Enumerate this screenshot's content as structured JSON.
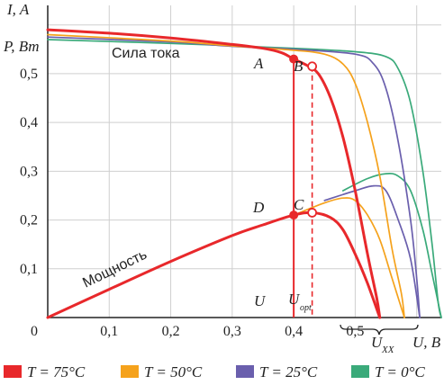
{
  "chart_data": {
    "type": "line",
    "xlabel": "U, B",
    "ylabel_current": "I, A",
    "ylabel_power": "P, Вт",
    "xlim": [
      0,
      0.64
    ],
    "ylim": [
      0,
      0.64
    ],
    "x_ticks": [
      "0",
      "0,1",
      "0,2",
      "0,3",
      "0,4",
      "0,5"
    ],
    "y_ticks": [
      "0,1",
      "0,2",
      "0,3",
      "0,4",
      "0,5"
    ],
    "annotations": {
      "current_label": "Сила тока",
      "power_label": "Мощность",
      "u_label": "U",
      "u_opt_label": "U",
      "u_opt_sub": "opt",
      "u_xx_label": "U",
      "u_xx_sub": "XX",
      "points": [
        {
          "label": "A",
          "x": 0.4,
          "y": 0.53
        },
        {
          "label": "B",
          "x": 0.43,
          "y": 0.515
        },
        {
          "label": "C",
          "x": 0.43,
          "y": 0.215
        },
        {
          "label": "D",
          "x": 0.4,
          "y": 0.21
        }
      ]
    },
    "series": [
      {
        "name": "T = 75°C",
        "color": "#e8282b",
        "current": [
          [
            0,
            0.59
          ],
          [
            0.1,
            0.583
          ],
          [
            0.2,
            0.573
          ],
          [
            0.3,
            0.56
          ],
          [
            0.35,
            0.552
          ],
          [
            0.38,
            0.543
          ],
          [
            0.4,
            0.53
          ],
          [
            0.42,
            0.518
          ],
          [
            0.44,
            0.5
          ],
          [
            0.46,
            0.45
          ],
          [
            0.48,
            0.37
          ],
          [
            0.5,
            0.26
          ],
          [
            0.52,
            0.13
          ],
          [
            0.535,
            0.04
          ],
          [
            0.54,
            0
          ]
        ],
        "power": [
          [
            0,
            0
          ],
          [
            0.1,
            0.058
          ],
          [
            0.2,
            0.115
          ],
          [
            0.3,
            0.168
          ],
          [
            0.35,
            0.19
          ],
          [
            0.4,
            0.21
          ],
          [
            0.43,
            0.215
          ],
          [
            0.46,
            0.205
          ],
          [
            0.48,
            0.18
          ],
          [
            0.5,
            0.13
          ],
          [
            0.52,
            0.07
          ],
          [
            0.54,
            0
          ]
        ]
      },
      {
        "name": "T = 50°C",
        "color": "#f5a21c",
        "current": [
          [
            0,
            0.58
          ],
          [
            0.2,
            0.567
          ],
          [
            0.3,
            0.557
          ],
          [
            0.4,
            0.548
          ],
          [
            0.45,
            0.54
          ],
          [
            0.48,
            0.52
          ],
          [
            0.5,
            0.48
          ],
          [
            0.52,
            0.4
          ],
          [
            0.54,
            0.29
          ],
          [
            0.56,
            0.14
          ],
          [
            0.575,
            0.05
          ],
          [
            0.58,
            0
          ]
        ],
        "power": [
          [
            0.4,
            0.21
          ],
          [
            0.45,
            0.235
          ],
          [
            0.48,
            0.245
          ],
          [
            0.5,
            0.24
          ],
          [
            0.52,
            0.21
          ],
          [
            0.54,
            0.16
          ],
          [
            0.56,
            0.08
          ],
          [
            0.58,
            0
          ]
        ]
      },
      {
        "name": "T = 25°C",
        "color": "#6a5fad",
        "current": [
          [
            0,
            0.575
          ],
          [
            0.2,
            0.565
          ],
          [
            0.3,
            0.556
          ],
          [
            0.4,
            0.55
          ],
          [
            0.5,
            0.54
          ],
          [
            0.53,
            0.52
          ],
          [
            0.55,
            0.47
          ],
          [
            0.57,
            0.36
          ],
          [
            0.59,
            0.2
          ],
          [
            0.6,
            0.08
          ],
          [
            0.605,
            0
          ]
        ],
        "power": [
          [
            0.45,
            0.24
          ],
          [
            0.5,
            0.26
          ],
          [
            0.53,
            0.27
          ],
          [
            0.55,
            0.26
          ],
          [
            0.57,
            0.2
          ],
          [
            0.59,
            0.12
          ],
          [
            0.605,
            0
          ]
        ]
      },
      {
        "name": "T = 0°C",
        "color": "#3aaa7a",
        "current": [
          [
            0,
            0.57
          ],
          [
            0.2,
            0.562
          ],
          [
            0.4,
            0.552
          ],
          [
            0.5,
            0.545
          ],
          [
            0.55,
            0.535
          ],
          [
            0.57,
            0.51
          ],
          [
            0.59,
            0.44
          ],
          [
            0.61,
            0.3
          ],
          [
            0.625,
            0.15
          ],
          [
            0.635,
            0.03
          ],
          [
            0.64,
            0
          ]
        ],
        "power": [
          [
            0.48,
            0.26
          ],
          [
            0.52,
            0.285
          ],
          [
            0.55,
            0.295
          ],
          [
            0.57,
            0.29
          ],
          [
            0.59,
            0.26
          ],
          [
            0.61,
            0.18
          ],
          [
            0.625,
            0.09
          ],
          [
            0.64,
            0
          ]
        ]
      }
    ],
    "legend": [
      {
        "label": "T = 75°C",
        "color": "#e8282b"
      },
      {
        "label": "T = 50°C",
        "color": "#f5a21c"
      },
      {
        "label": "T = 25°C",
        "color": "#6a5fad"
      },
      {
        "label": "T = 0°C",
        "color": "#3aaa7a"
      }
    ],
    "grid": true,
    "legend_position": "bottom"
  }
}
